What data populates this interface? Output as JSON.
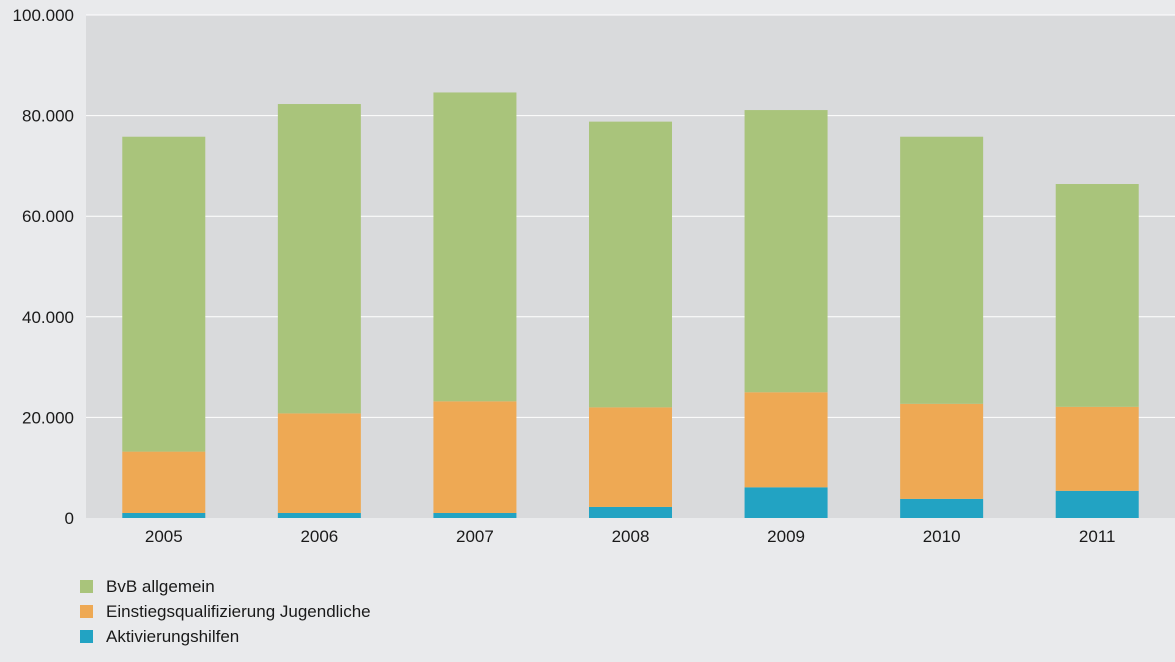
{
  "chart_data": {
    "type": "bar",
    "stacked": true,
    "categories": [
      "2005",
      "2006",
      "2007",
      "2008",
      "2009",
      "2010",
      "2011"
    ],
    "series": [
      {
        "name": "Aktivierungshilfen",
        "color": "#22a3c3",
        "values": [
          1000,
          1000,
          1000,
          2200,
          6100,
          3800,
          5400
        ]
      },
      {
        "name": "Einstiegsqualifizierung Jugendliche",
        "color": "#eea954",
        "values": [
          12200,
          19800,
          22200,
          19800,
          18900,
          18900,
          16700
        ]
      },
      {
        "name": "BvB allgemein",
        "color": "#a9c47b",
        "values": [
          62600,
          61500,
          61400,
          56800,
          56100,
          53100,
          44300
        ]
      }
    ],
    "legend_order": [
      "BvB allgemein",
      "Einstiegsqualifizierung Jugendliche",
      "Aktivierungshilfen"
    ],
    "y_ticks": [
      "0",
      "20.000",
      "40.000",
      "60.000",
      "80.000",
      "100.000"
    ],
    "ylim": [
      0,
      100000
    ],
    "grid": true,
    "legend_position": "bottom-left",
    "plot_background": "#d9dadc",
    "title": "",
    "xlabel": "",
    "ylabel": ""
  }
}
